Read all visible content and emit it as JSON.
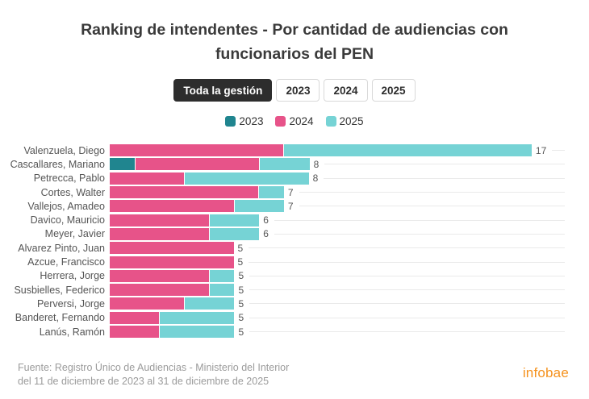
{
  "header": {
    "title": "Ranking de intendentes - Por cantidad de audiencias con funcionarios del PEN"
  },
  "tabs": [
    {
      "label": "Toda la gestión",
      "active": true
    },
    {
      "label": "2023",
      "active": false
    },
    {
      "label": "2024",
      "active": false
    },
    {
      "label": "2025",
      "active": false
    }
  ],
  "legend": [
    {
      "label": "2023",
      "color": "#20858f"
    },
    {
      "label": "2024",
      "color": "#e75389"
    },
    {
      "label": "2025",
      "color": "#76d3d5"
    }
  ],
  "chart_data": {
    "type": "bar",
    "orientation": "horizontal",
    "stacked": true,
    "categories": [
      "Valenzuela, Diego",
      "Cascallares, Mariano",
      "Petrecca, Pablo",
      "Cortes, Walter",
      "Vallejos, Amadeo",
      "Davico, Mauricio",
      "Meyer, Javier",
      "Alvarez Pinto, Juan",
      "Azcue, Francisco",
      "Herrera, Jorge",
      "Susbielles, Federico",
      "Perversi, Jorge",
      "Banderet, Fernando",
      "Lanús, Ramón"
    ],
    "series": [
      {
        "name": "2023",
        "color": "#20858f",
        "values": [
          0,
          1,
          0,
          0,
          0,
          0,
          0,
          0,
          0,
          0,
          0,
          0,
          0,
          0
        ]
      },
      {
        "name": "2024",
        "color": "#e75389",
        "values": [
          7,
          5,
          3,
          6,
          5,
          4,
          4,
          5,
          5,
          4,
          4,
          3,
          2,
          2
        ]
      },
      {
        "name": "2025",
        "color": "#76d3d5",
        "values": [
          10,
          2,
          5,
          1,
          2,
          2,
          2,
          0,
          0,
          1,
          1,
          2,
          3,
          3
        ]
      }
    ],
    "totals": [
      17,
      8,
      8,
      7,
      7,
      6,
      6,
      5,
      5,
      5,
      5,
      5,
      5,
      5
    ],
    "xlim": [
      0,
      17
    ],
    "value_labels": true,
    "grid": true,
    "legend_position": "top"
  },
  "footer": {
    "line1": "Fuente: Registro Único de Audiencias - Ministerio del Interior",
    "line2": "del 11 de diciembre de 2023 al 31 de diciembre de 2025",
    "brand": "infobae",
    "brand_color": "#f5921e"
  }
}
